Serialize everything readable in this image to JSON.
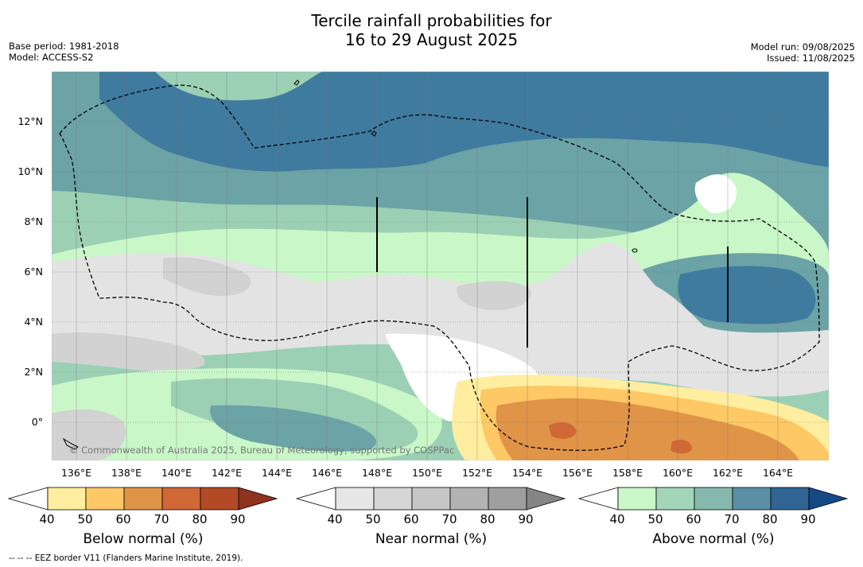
{
  "title_line1": "Tercile rainfall probabilities for",
  "title_line2": "16 to 29 August 2025",
  "base_period": "Base period: 1981-2018",
  "model": "Model: ACCESS-S2",
  "model_run": "Model run: 09/08/2025",
  "issued": "Issued: 11/08/2025",
  "copyright": "© Commonwealth of Australia 2025, Bureau of Meteorology, supported by COSPPac",
  "footnote": "-- -- -- EEZ border V11 (Flanders Marine Institute, 2019).",
  "lat_labels": [
    "12°N",
    "10°N",
    "8°N",
    "6°N",
    "4°N",
    "2°N",
    "0°"
  ],
  "lon_labels": [
    "136°E",
    "138°E",
    "140°E",
    "142°E",
    "144°E",
    "146°E",
    "148°E",
    "150°E",
    "152°E",
    "154°E",
    "156°E",
    "158°E",
    "160°E",
    "162°E",
    "164°E"
  ],
  "colorbars": [
    {
      "title": "Below normal (%)",
      "ticks": [
        "40",
        "50",
        "60",
        "70",
        "80",
        "90"
      ],
      "colors": [
        "#ffffff",
        "#ffeea0",
        "#fdc865",
        "#e09448",
        "#cf6835",
        "#b24a26",
        "#8f3220"
      ]
    },
    {
      "title": "Near normal (%)",
      "ticks": [
        "40",
        "50",
        "60",
        "70",
        "80",
        "90"
      ],
      "colors": [
        "#ffffff",
        "#e6e6e6",
        "#d6d6d6",
        "#c6c6c6",
        "#b3b3b3",
        "#9f9f9f",
        "#858585"
      ]
    },
    {
      "title": "Above normal (%)",
      "ticks": [
        "40",
        "50",
        "60",
        "70",
        "80",
        "90"
      ],
      "colors": [
        "#ffffff",
        "#c9f7c8",
        "#a3d6b8",
        "#86b8ad",
        "#5b8fa5",
        "#2f6494",
        "#164a86"
      ]
    }
  ],
  "map_colors": {
    "above_50": "#c9f7c8",
    "above_60": "#9bd0b4",
    "above_70": "#6ba3a6",
    "above_80": "#3f7a9f",
    "near_50": "#e3e3e3",
    "near_60": "#d2d2d2",
    "below_50": "#ffeea0",
    "below_60": "#fdc865",
    "below_70": "#e09448",
    "below_80": "#cf6835"
  }
}
